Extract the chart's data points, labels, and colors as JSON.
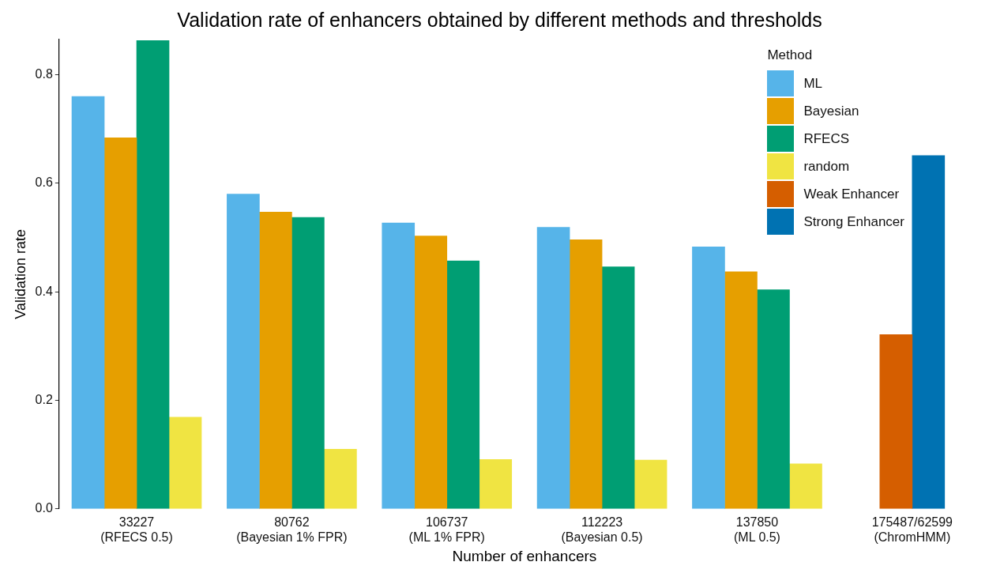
{
  "chart_data": {
    "type": "bar",
    "title": "Validation rate of enhancers obtained by different methods and thresholds",
    "xlabel": "Number of enhancers",
    "ylabel": "Validation rate",
    "legend_title": "Method",
    "legend": "top right",
    "grid": false,
    "categories": [
      "33227\n(RFECS 0.5)",
      "80762\n(Bayesian 1% FPR)",
      "106737\n(ML 1% FPR)",
      "112223\n(Bayesian 0.5)",
      "137850\n(ML 0.5)",
      "175487/62599\n(ChromHMM)"
    ],
    "ylim": [
      0,
      0.865
    ],
    "yticks": [
      {
        "value": 0,
        "label": "0.0"
      },
      0.2,
      0.4,
      0.6,
      0.8
    ],
    "series": [
      {
        "name": "ML",
        "color": "#56b4e9",
        "values": [
          0.76,
          0.58,
          0.527,
          0.519,
          0.483,
          null
        ]
      },
      {
        "name": "Bayesian",
        "color": "#e69f00",
        "values": [
          0.684,
          0.547,
          0.503,
          0.496,
          0.437,
          null
        ]
      },
      {
        "name": "RFECS",
        "color": "#009e73",
        "values": [
          0.863,
          0.537,
          0.457,
          0.446,
          0.404,
          null
        ]
      },
      {
        "name": "random",
        "color": "#f0e442",
        "values": [
          0.169,
          0.11,
          0.091,
          0.09,
          0.083,
          null
        ]
      },
      {
        "name": "Weak Enhancer",
        "color": "#d55e00",
        "values": [
          null,
          null,
          null,
          null,
          null,
          0.321
        ]
      },
      {
        "name": "Strong Enhancer",
        "color": "#0072b2",
        "values": [
          null,
          null,
          null,
          null,
          null,
          0.651
        ]
      }
    ]
  }
}
